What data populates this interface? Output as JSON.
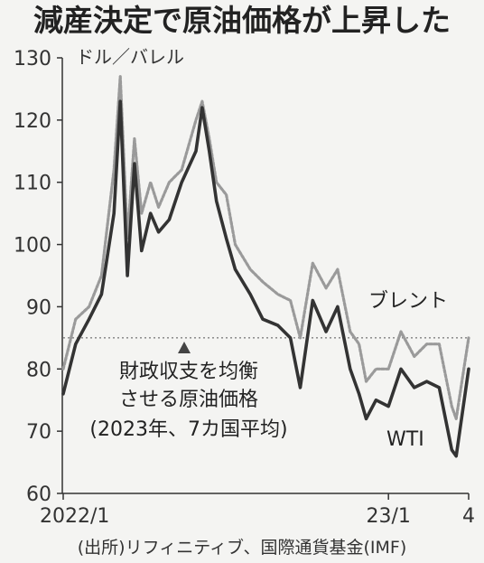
{
  "chart_data": {
    "type": "line",
    "title": "減産決定で原油価格が上昇した",
    "unit_label": "ドル／バレル",
    "ylim": [
      60,
      130
    ],
    "y_ticks": [
      130,
      120,
      110,
      100,
      90,
      80,
      70,
      60
    ],
    "x_tick_labels": [
      "2022/1",
      "23/1",
      "4"
    ],
    "source": "(出所)リフィニティブ、国際通貨基金(IMF)",
    "reference_line": {
      "value": 85,
      "label_lines": [
        "財政収支を均衡",
        "させる原油価格",
        "(2023年、7カ国平均)"
      ]
    },
    "grid": false,
    "series": [
      {
        "name": "ブレント",
        "color": "#9a9a9a",
        "x": [
          "2022-01-03",
          "2022-01-17",
          "2022-02-01",
          "2022-02-15",
          "2022-03-01",
          "2022-03-08",
          "2022-03-16",
          "2022-03-24",
          "2022-04-01",
          "2022-04-11",
          "2022-04-20",
          "2022-05-02",
          "2022-05-16",
          "2022-06-01",
          "2022-06-08",
          "2022-06-16",
          "2022-06-24",
          "2022-07-05",
          "2022-07-15",
          "2022-08-01",
          "2022-08-15",
          "2022-09-01",
          "2022-09-15",
          "2022-09-26",
          "2022-10-10",
          "2022-10-25",
          "2022-11-07",
          "2022-11-21",
          "2022-12-01",
          "2022-12-09",
          "2022-12-20",
          "2023-01-03",
          "2023-01-17",
          "2023-02-01",
          "2023-02-15",
          "2023-03-01",
          "2023-03-15",
          "2023-03-20",
          "2023-04-03"
        ],
        "values": [
          80,
          88,
          90,
          95,
          112,
          127,
          101,
          117,
          105,
          110,
          106,
          110,
          112,
          120,
          123,
          117,
          110,
          108,
          100,
          96,
          94,
          92,
          91,
          85,
          97,
          93,
          96,
          86,
          84,
          78,
          80,
          80,
          86,
          82,
          84,
          84,
          74,
          72,
          85
        ]
      },
      {
        "name": "WTI",
        "color": "#333333",
        "x": [
          "2022-01-03",
          "2022-01-17",
          "2022-02-01",
          "2022-02-15",
          "2022-03-01",
          "2022-03-08",
          "2022-03-16",
          "2022-03-24",
          "2022-04-01",
          "2022-04-11",
          "2022-04-20",
          "2022-05-02",
          "2022-05-16",
          "2022-06-01",
          "2022-06-08",
          "2022-06-16",
          "2022-06-24",
          "2022-07-05",
          "2022-07-15",
          "2022-08-01",
          "2022-08-15",
          "2022-09-01",
          "2022-09-15",
          "2022-09-26",
          "2022-10-10",
          "2022-10-25",
          "2022-11-07",
          "2022-11-21",
          "2022-12-01",
          "2022-12-09",
          "2022-12-20",
          "2023-01-03",
          "2023-01-17",
          "2023-02-01",
          "2023-02-15",
          "2023-03-01",
          "2023-03-15",
          "2023-03-20",
          "2023-04-03"
        ],
        "values": [
          76,
          84,
          88,
          92,
          105,
          123,
          95,
          113,
          99,
          105,
          102,
          104,
          110,
          115,
          122,
          115,
          107,
          101,
          96,
          92,
          88,
          87,
          85,
          77,
          91,
          86,
          90,
          80,
          76,
          72,
          75,
          74,
          80,
          77,
          78,
          77,
          67,
          66,
          80
        ]
      }
    ],
    "series_labels": [
      "ブレント",
      "WTI"
    ]
  }
}
